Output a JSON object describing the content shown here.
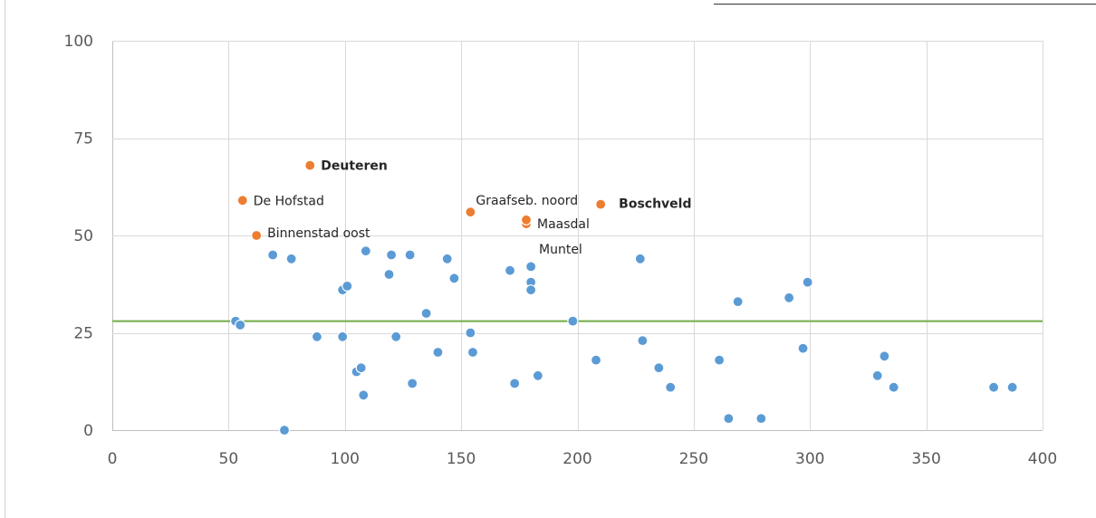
{
  "chart_data": {
    "type": "scatter",
    "title": "",
    "xlabel": "",
    "ylabel": "",
    "xlim": [
      0,
      400
    ],
    "ylim": [
      0,
      100
    ],
    "x_ticks": [
      0,
      50,
      100,
      150,
      200,
      250,
      300,
      350,
      400
    ],
    "y_ticks": [
      0,
      25,
      50,
      75,
      100
    ],
    "grid": true,
    "legend": "none",
    "reference_line": {
      "y": 28,
      "color": "#70AD47"
    },
    "series": [
      {
        "color": "#5B9BD5",
        "points": [
          {
            "x": 53,
            "y": 28
          },
          {
            "x": 55,
            "y": 27
          },
          {
            "x": 69,
            "y": 45
          },
          {
            "x": 74,
            "y": 0
          },
          {
            "x": 77,
            "y": 44
          },
          {
            "x": 88,
            "y": 24
          },
          {
            "x": 99,
            "y": 24
          },
          {
            "x": 99,
            "y": 36
          },
          {
            "x": 101,
            "y": 37
          },
          {
            "x": 105,
            "y": 15
          },
          {
            "x": 107,
            "y": 16
          },
          {
            "x": 108,
            "y": 9
          },
          {
            "x": 109,
            "y": 46
          },
          {
            "x": 119,
            "y": 40
          },
          {
            "x": 120,
            "y": 45
          },
          {
            "x": 122,
            "y": 24
          },
          {
            "x": 128,
            "y": 45
          },
          {
            "x": 129,
            "y": 12
          },
          {
            "x": 135,
            "y": 30
          },
          {
            "x": 140,
            "y": 20
          },
          {
            "x": 144,
            "y": 44
          },
          {
            "x": 147,
            "y": 39
          },
          {
            "x": 154,
            "y": 25
          },
          {
            "x": 155,
            "y": 20
          },
          {
            "x": 171,
            "y": 41
          },
          {
            "x": 173,
            "y": 12
          },
          {
            "x": 180,
            "y": 42
          },
          {
            "x": 180,
            "y": 38
          },
          {
            "x": 180,
            "y": 36
          },
          {
            "x": 183,
            "y": 14
          },
          {
            "x": 198,
            "y": 28
          },
          {
            "x": 208,
            "y": 18
          },
          {
            "x": 227,
            "y": 44
          },
          {
            "x": 228,
            "y": 23
          },
          {
            "x": 235,
            "y": 16
          },
          {
            "x": 240,
            "y": 11
          },
          {
            "x": 261,
            "y": 18
          },
          {
            "x": 265,
            "y": 3
          },
          {
            "x": 269,
            "y": 33
          },
          {
            "x": 279,
            "y": 3
          },
          {
            "x": 291,
            "y": 34
          },
          {
            "x": 297,
            "y": 21
          },
          {
            "x": 299,
            "y": 38
          },
          {
            "x": 329,
            "y": 14
          },
          {
            "x": 332,
            "y": 19
          },
          {
            "x": 336,
            "y": 11
          },
          {
            "x": 379,
            "y": 11
          },
          {
            "x": 387,
            "y": 11
          }
        ]
      },
      {
        "color": "#ED7D31",
        "points": [
          {
            "x": 85,
            "y": 68,
            "label": "Deuteren",
            "bold": true
          },
          {
            "x": 56,
            "y": 59,
            "label": "De Hofstad",
            "bold": false
          },
          {
            "x": 62,
            "y": 50,
            "label": "Binnenstad oost",
            "bold": false
          },
          {
            "x": 154,
            "y": 56,
            "label": "Graafseb. noord",
            "bold": false
          },
          {
            "x": 178,
            "y": 53,
            "label": "Maasdal",
            "bold": false
          },
          {
            "x": 178,
            "y": 54,
            "label": "Muntel",
            "bold": false
          },
          {
            "x": 210,
            "y": 58,
            "label": "Boschveld",
            "bold": true
          }
        ]
      }
    ]
  }
}
